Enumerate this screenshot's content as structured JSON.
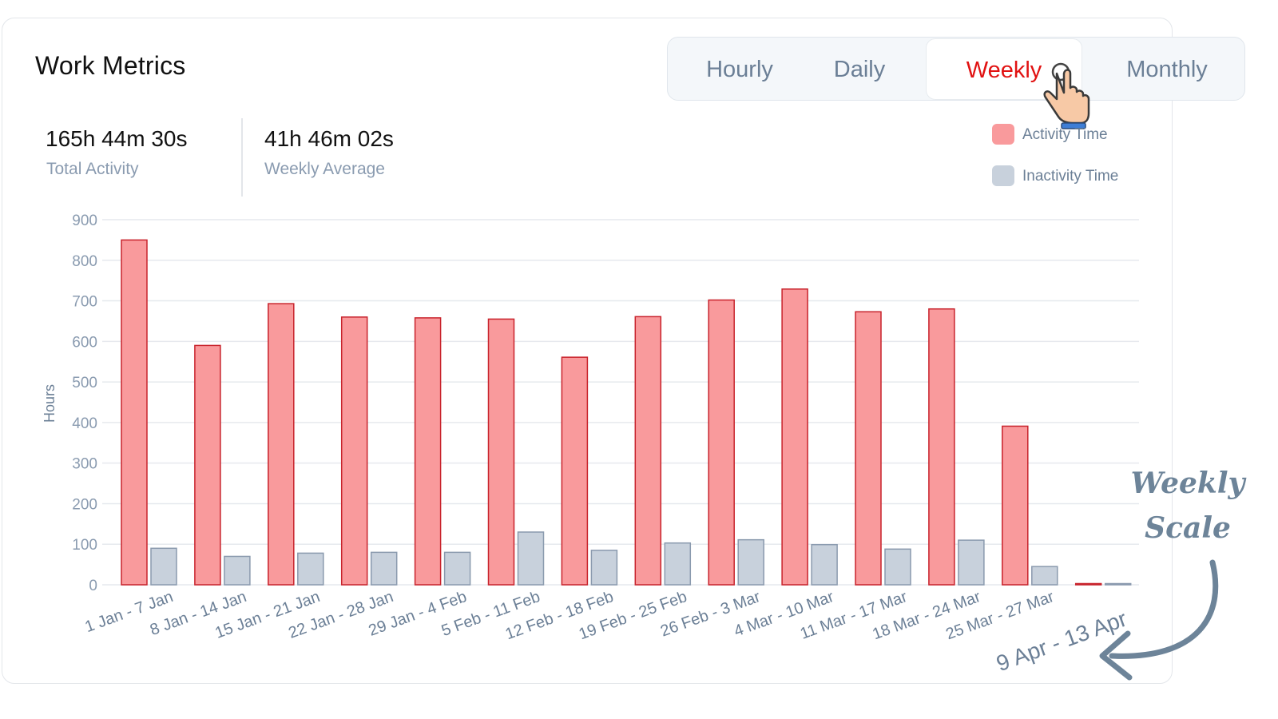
{
  "card": {
    "title": "Work Metrics"
  },
  "tabs": [
    {
      "label": "Hourly",
      "active": false
    },
    {
      "label": "Daily",
      "active": false
    },
    {
      "label": "Weekly",
      "active": true
    },
    {
      "label": "Monthly",
      "active": false
    }
  ],
  "stats": {
    "total": {
      "value": "165h 44m 30s",
      "label": "Total Activity"
    },
    "average": {
      "value": "41h 46m 02s",
      "label": "Weekly Average"
    }
  },
  "annotation": {
    "line1": "Weekly",
    "line2": "Scale"
  },
  "colors": {
    "activity": "#f99a9c",
    "activity_border": "#c8232c",
    "inactivity": "#c8d1dc",
    "inactivity_border": "#8a9aae",
    "active_tab": "#e11212",
    "annotation": "#6d8499"
  },
  "chart_data": {
    "type": "bar",
    "ylabel": "Hours",
    "ylim": [
      0,
      900
    ],
    "yticks": [
      0,
      100,
      200,
      300,
      400,
      500,
      600,
      700,
      800,
      900
    ],
    "grid": true,
    "legend_position": "top-right",
    "categories": [
      "1 Jan - 7 Jan",
      "8 Jan - 14 Jan",
      "15 Jan - 21 Jan",
      "22 Jan - 28 Jan",
      "29 Jan - 4 Feb",
      "5 Feb - 11 Feb",
      "12 Feb - 18 Feb",
      "19 Feb - 25 Feb",
      "26 Feb - 3 Mar",
      "4 Mar - 10 Mar",
      "11 Mar - 17 Mar",
      "18 Mar - 24 Mar",
      "25 Mar - 27 Mar",
      "9 Apr - 13 Apr"
    ],
    "series": [
      {
        "name": "Activity Time",
        "values": [
          850,
          590,
          693,
          660,
          658,
          655,
          561,
          661,
          702,
          729,
          673,
          680,
          391,
          2
        ]
      },
      {
        "name": "Inactivity Time",
        "values": [
          90,
          70,
          78,
          80,
          80,
          130,
          85,
          103,
          111,
          99,
          88,
          110,
          45,
          0
        ]
      }
    ]
  }
}
